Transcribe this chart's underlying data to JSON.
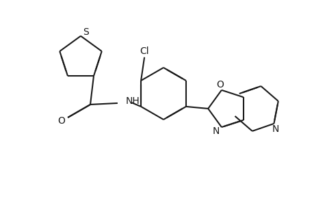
{
  "bg_color": "#ffffff",
  "line_color": "#1a1a1a",
  "line_width": 1.5,
  "dbo": 0.012,
  "figsize": [
    4.6,
    3.0
  ],
  "dpi": 100,
  "atoms": {
    "S_label": "S",
    "O_carbonyl": "O",
    "NH_label": "NH",
    "O_oxazole": "O",
    "N_oxazole": "N",
    "N_pyridine": "N",
    "Cl_label": "Cl"
  },
  "font_size": 9
}
